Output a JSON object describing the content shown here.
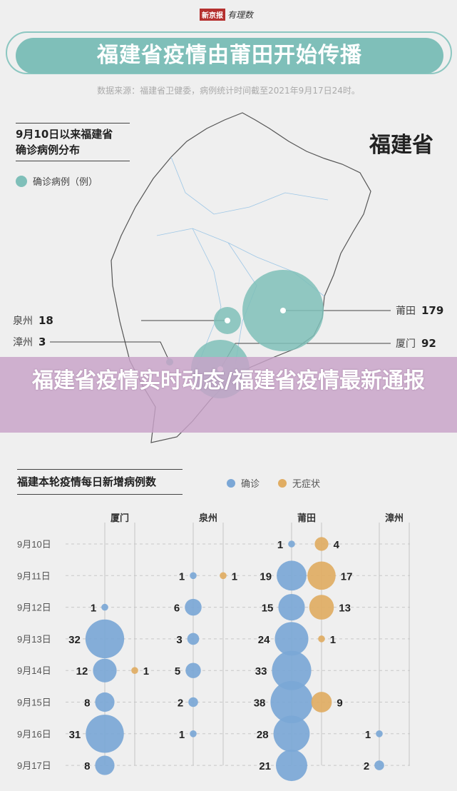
{
  "header": {
    "logo_text": "新京报",
    "logo_script": "有理数",
    "title": "福建省疫情由莆田开始传播",
    "source": "数据来源：福建省卫健委，病例统计时间截至2021年9月17日24时。"
  },
  "map": {
    "title_line1": "9月10日以来福建省",
    "title_line2": "确诊病例分布",
    "legend_label": "确诊病例（例）",
    "province_label": "福建省",
    "bubble_color": "#7fbfb9",
    "cities": [
      {
        "name": "莆田",
        "value": "179"
      },
      {
        "name": "泉州",
        "value": "18"
      },
      {
        "name": "厦门",
        "value": "92"
      },
      {
        "name": "漳州",
        "value": "3"
      }
    ]
  },
  "banner": {
    "text": "福建省疫情实时动态/福建省疫情最新通报"
  },
  "chart_data": {
    "type": "scatter",
    "title": "福建本轮疫情每日新增病例数",
    "legend": [
      {
        "name": "确诊",
        "color": "#7ba7d6"
      },
      {
        "name": "无症状",
        "color": "#e0ad63"
      }
    ],
    "legend_placement": "top-right",
    "dates": [
      "9月10日",
      "9月11日",
      "9月12日",
      "9月13日",
      "9月14日",
      "9月15日",
      "9月16日",
      "9月17日"
    ],
    "cities": [
      "厦门",
      "泉州",
      "莆田",
      "漳州"
    ],
    "series": [
      {
        "city": "厦门",
        "confirmed": [
          null,
          null,
          1,
          32,
          12,
          8,
          31,
          8
        ],
        "asymptomatic": [
          null,
          null,
          null,
          null,
          1,
          null,
          null,
          null
        ]
      },
      {
        "city": "泉州",
        "confirmed": [
          null,
          1,
          6,
          3,
          5,
          2,
          1,
          null
        ],
        "asymptomatic": [
          null,
          1,
          null,
          null,
          null,
          null,
          null,
          null
        ]
      },
      {
        "city": "莆田",
        "confirmed": [
          1,
          19,
          15,
          24,
          33,
          38,
          28,
          21
        ],
        "asymptomatic": [
          4,
          17,
          13,
          1,
          null,
          9,
          null,
          null
        ]
      },
      {
        "city": "漳州",
        "confirmed": [
          null,
          null,
          null,
          null,
          null,
          null,
          1,
          2
        ],
        "asymptomatic": [
          null,
          null,
          null,
          null,
          null,
          null,
          null,
          null
        ]
      }
    ]
  }
}
